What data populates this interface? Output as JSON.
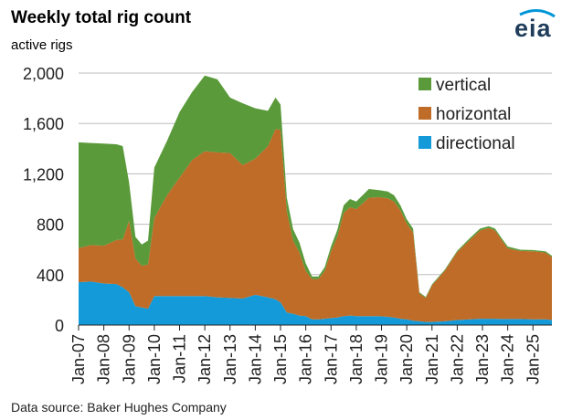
{
  "title": "Weekly total rig count",
  "ylabel": "active rigs",
  "source": "Data source: Baker Hughes Company",
  "logo": {
    "text": "eia",
    "accent": "#0096d7"
  },
  "colors": {
    "vertical": "#5a9a3a",
    "horizontal": "#bf6c28",
    "directional": "#149ad8",
    "grid": "#bdbdbd",
    "axis": "#222222"
  },
  "chart_data": {
    "type": "area",
    "stacked": true,
    "x_ticks": [
      "Jan-07",
      "Jan-08",
      "Jan-09",
      "Jan-10",
      "Jan-11",
      "Jan-12",
      "Jan-13",
      "Jan-14",
      "Jan-15",
      "Jan-16",
      "Jan-17",
      "Jan-18",
      "Jan-19",
      "Jan-20",
      "Jan-21",
      "Jan-22",
      "Jan-23",
      "Jan-24",
      "Jan-25"
    ],
    "y_ticks": [
      "0",
      "400",
      "800",
      "1,200",
      "1,600",
      "2,000"
    ],
    "ylim": [
      0,
      2000
    ],
    "xlim": [
      2007.0,
      2025.75
    ],
    "grid": true,
    "legend_position": "top-right",
    "x": [
      2007.0,
      2007.5,
      2008.0,
      2008.5,
      2008.75,
      2009.0,
      2009.25,
      2009.5,
      2009.75,
      2010.0,
      2010.5,
      2011.0,
      2011.5,
      2012.0,
      2012.5,
      2013.0,
      2013.5,
      2014.0,
      2014.5,
      2014.8,
      2015.0,
      2015.25,
      2015.5,
      2015.75,
      2016.0,
      2016.25,
      2016.5,
      2016.75,
      2017.0,
      2017.25,
      2017.5,
      2017.75,
      2018.0,
      2018.5,
      2018.9,
      2019.25,
      2019.5,
      2019.75,
      2020.0,
      2020.25,
      2020.5,
      2020.75,
      2021.0,
      2021.5,
      2022.0,
      2022.5,
      2022.9,
      2023.25,
      2023.5,
      2023.75,
      2024.0,
      2024.5,
      2025.0,
      2025.5,
      2025.75
    ],
    "series": [
      {
        "name": "directional",
        "values": [
          340,
          345,
          330,
          325,
          300,
          260,
          150,
          140,
          130,
          230,
          230,
          230,
          230,
          230,
          220,
          215,
          210,
          240,
          220,
          205,
          180,
          100,
          90,
          75,
          70,
          45,
          45,
          50,
          55,
          60,
          70,
          75,
          70,
          70,
          70,
          65,
          60,
          50,
          45,
          35,
          30,
          25,
          25,
          30,
          40,
          45,
          50,
          50,
          50,
          48,
          48,
          48,
          45,
          45,
          40
        ]
      },
      {
        "name": "horizontal",
        "values": [
          270,
          290,
          300,
          350,
          380,
          570,
          380,
          330,
          350,
          620,
          800,
          940,
          1080,
          1150,
          1150,
          1150,
          1060,
          1080,
          1200,
          1350,
          1370,
          800,
          580,
          500,
          360,
          320,
          320,
          380,
          530,
          640,
          820,
          860,
          850,
          940,
          945,
          940,
          920,
          860,
          760,
          700,
          220,
          190,
          290,
          400,
          540,
          630,
          700,
          720,
          700,
          630,
          560,
          540,
          540,
          530,
          500
        ]
      },
      {
        "name": "vertical",
        "values": [
          840,
          810,
          810,
          760,
          740,
          300,
          170,
          170,
          190,
          400,
          430,
          520,
          540,
          600,
          580,
          440,
          490,
          400,
          280,
          250,
          200,
          110,
          90,
          80,
          60,
          20,
          20,
          30,
          40,
          55,
          60,
          65,
          60,
          70,
          55,
          55,
          50,
          40,
          35,
          30,
          10,
          8,
          8,
          8,
          10,
          15,
          15,
          15,
          15,
          15,
          15,
          10,
          10,
          10,
          10
        ]
      }
    ]
  }
}
